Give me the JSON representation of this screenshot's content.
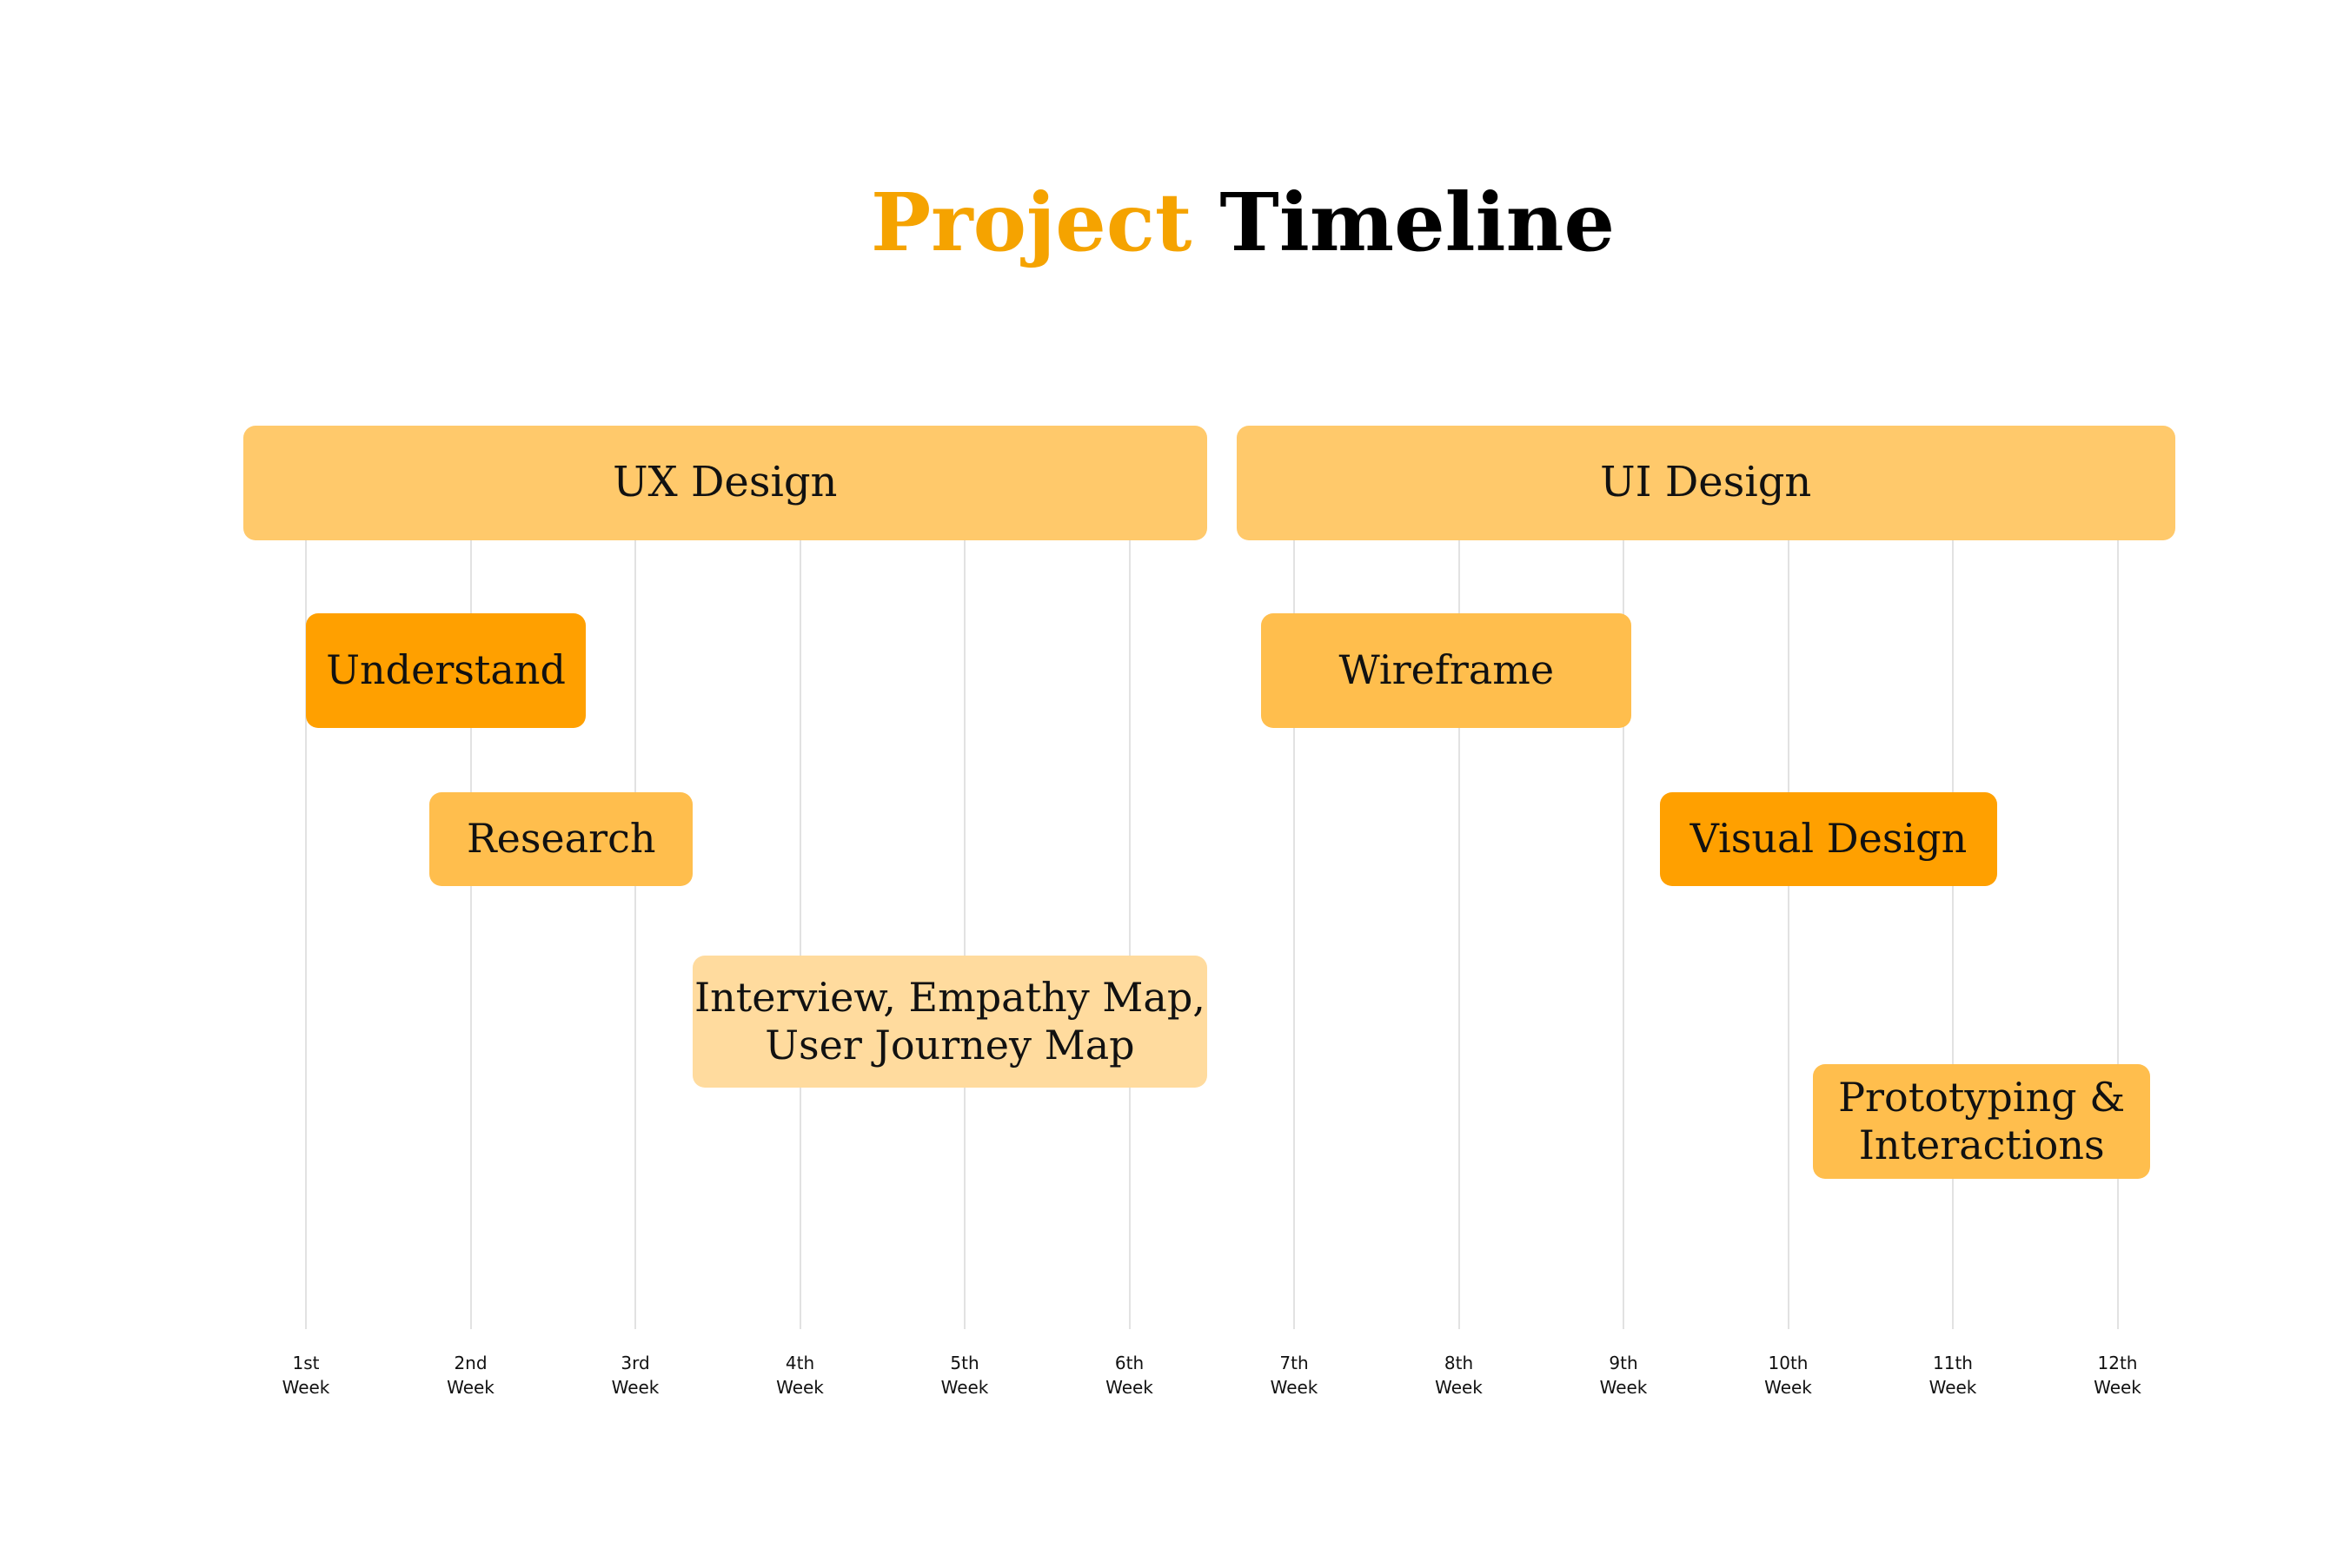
{
  "title": {
    "accent": "Project",
    "rest": "Timeline"
  },
  "colors": {
    "title_accent": "#F5A300",
    "group_bar": "#FFC96B",
    "task_dark": "#FFA000",
    "task_medium": "#FFBE4D",
    "task_light": "#FFDB9E",
    "gridline": "#E2E2E2"
  },
  "weeks": [
    {
      "num": "1st",
      "unit": "Week"
    },
    {
      "num": "2nd",
      "unit": "Week"
    },
    {
      "num": "3rd",
      "unit": "Week"
    },
    {
      "num": "4th",
      "unit": "Week"
    },
    {
      "num": "5th",
      "unit": "Week"
    },
    {
      "num": "6th",
      "unit": "Week"
    },
    {
      "num": "7th",
      "unit": "Week"
    },
    {
      "num": "8th",
      "unit": "Week"
    },
    {
      "num": "9th",
      "unit": "Week"
    },
    {
      "num": "10th",
      "unit": "Week"
    },
    {
      "num": "11th",
      "unit": "Week"
    },
    {
      "num": "12th",
      "unit": "Week"
    }
  ],
  "groups": [
    {
      "label": "UX Design",
      "start_week": 0.62,
      "end_week": 6.47
    },
    {
      "label": "UI Design",
      "start_week": 6.65,
      "end_week": 12.35
    }
  ],
  "tasks": [
    {
      "label": "Understand",
      "start_week": 1.0,
      "end_week": 2.7,
      "row": 0,
      "shade": "dark"
    },
    {
      "label": "Research",
      "start_week": 1.75,
      "end_week": 3.35,
      "row": 1,
      "shade": "medium"
    },
    {
      "label": "Interview, Empathy Map,\nUser Journey Map",
      "start_week": 3.35,
      "end_week": 6.47,
      "row": 2,
      "shade": "light"
    },
    {
      "label": "Wireframe",
      "start_week": 6.8,
      "end_week": 9.05,
      "row": 0,
      "shade": "medium"
    },
    {
      "label": "Visual Design",
      "start_week": 9.22,
      "end_week": 11.27,
      "row": 1,
      "shade": "dark"
    },
    {
      "label": "Prototyping &\nInteractions",
      "start_week": 10.15,
      "end_week": 12.2,
      "row": 3,
      "shade": "medium"
    }
  ]
}
